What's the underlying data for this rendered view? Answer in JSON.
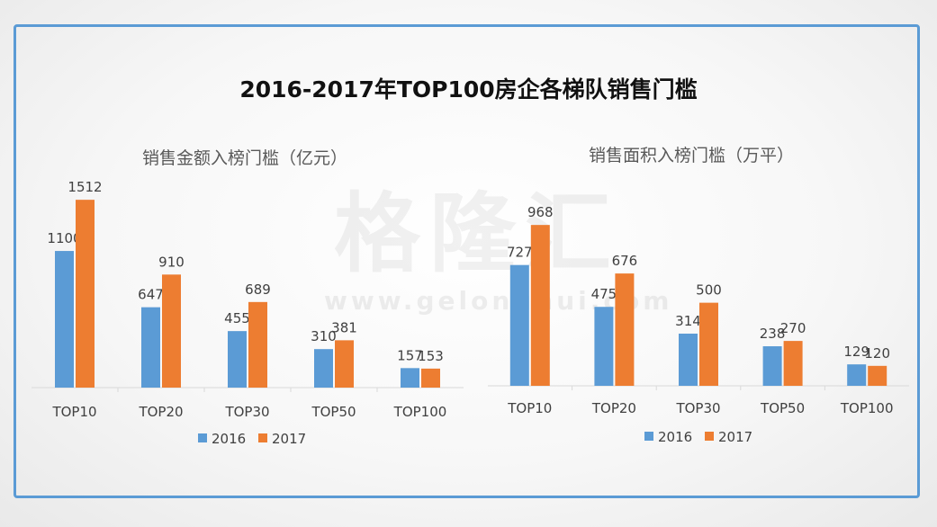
{
  "page": {
    "title": "2016-2017年TOP100房企各梯队销售门槛",
    "watermark": "格隆汇",
    "watermark_url": "www.gelonghui.com"
  },
  "colors": {
    "s2016": "#5b9bd5",
    "s2017": "#ed7d31",
    "frame": "#5b9bd5",
    "axis": "#d9d9d9"
  },
  "chart_data": [
    {
      "type": "bar",
      "title": "销售金额入榜门槛（亿元）",
      "categories": [
        "TOP10",
        "TOP20",
        "TOP30",
        "TOP50",
        "TOP100"
      ],
      "series": [
        {
          "name": "2016",
          "values": [
            1100,
            647,
            455,
            310,
            157
          ]
        },
        {
          "name": "2017",
          "values": [
            1512,
            910,
            689,
            381,
            153
          ]
        }
      ],
      "ylim": [
        0,
        1600
      ],
      "grid": false,
      "legend": "bottom"
    },
    {
      "type": "bar",
      "title": "销售面积入榜门槛（万平）",
      "categories": [
        "TOP10",
        "TOP20",
        "TOP30",
        "TOP50",
        "TOP100"
      ],
      "series": [
        {
          "name": "2016",
          "values": [
            727,
            475,
            314,
            238,
            129
          ]
        },
        {
          "name": "2017",
          "values": [
            968,
            676,
            500,
            270,
            120
          ]
        }
      ],
      "ylim": [
        0,
        1050
      ],
      "grid": false,
      "legend": "bottom"
    }
  ]
}
